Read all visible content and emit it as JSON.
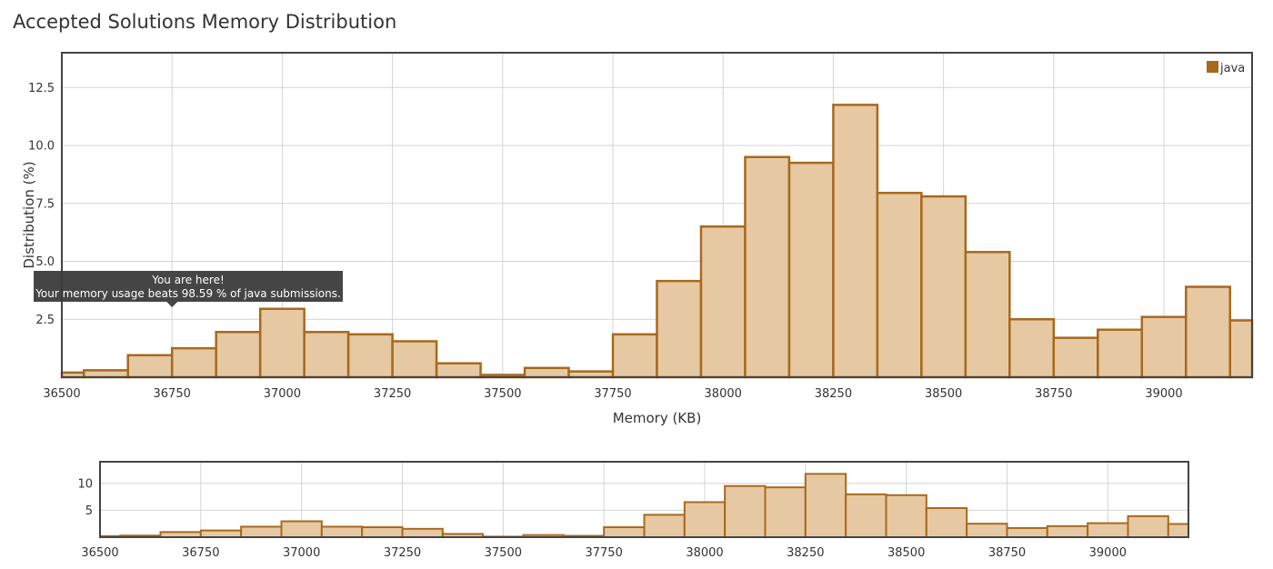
{
  "page": {
    "title": "Accepted Solutions Memory Distribution"
  },
  "colors": {
    "bar_fill": "#e6c9a3",
    "bar_stroke": "#a8691c",
    "grid": "#d4d4d4",
    "frame": "#444444",
    "tooltip_bg": "#3b3b3b"
  },
  "tooltip": {
    "line1": "You are here!",
    "line2": "Your memory usage beats 98.59 % of java submissions."
  },
  "chart_data": [
    {
      "type": "bar",
      "role": "main",
      "xlabel": "Memory (KB)",
      "ylabel": "Distribution (%)",
      "xlim": [
        36500,
        39200
      ],
      "ylim": [
        0,
        14
      ],
      "grid": true,
      "legend_position": "top-right",
      "x_ticks": [
        36500,
        36750,
        37000,
        37250,
        37500,
        37750,
        38000,
        38250,
        38500,
        38750,
        39000
      ],
      "y_ticks": [
        2.5,
        5.0,
        7.5,
        10.0,
        12.5
      ],
      "series": [
        {
          "name": "java",
          "bin_width": 100,
          "bins": [
            36450,
            36550,
            36650,
            36750,
            36850,
            36950,
            37050,
            37150,
            37250,
            37350,
            37450,
            37550,
            37650,
            37750,
            37850,
            37950,
            38050,
            38150,
            38250,
            38350,
            38450,
            38550,
            38650,
            38750,
            38850,
            38950,
            39050,
            39150
          ],
          "values": [
            0.2,
            0.3,
            0.95,
            1.25,
            1.95,
            2.95,
            1.95,
            1.85,
            1.55,
            0.6,
            0.1,
            0.4,
            0.25,
            1.85,
            4.15,
            6.5,
            9.5,
            9.25,
            11.75,
            7.95,
            7.8,
            5.4,
            2.5,
            1.7,
            2.05,
            2.6,
            3.9,
            2.45
          ]
        }
      ],
      "annotation": {
        "x": 36750,
        "text": "You are here!"
      }
    },
    {
      "type": "bar",
      "role": "navigator",
      "xlim": [
        36500,
        39200
      ],
      "ylim": [
        0,
        14
      ],
      "x_ticks": [
        36500,
        36750,
        37000,
        37250,
        37500,
        37750,
        38000,
        38250,
        38500,
        38750,
        39000
      ],
      "y_ticks": [
        5,
        10
      ],
      "series_ref": "java"
    }
  ]
}
